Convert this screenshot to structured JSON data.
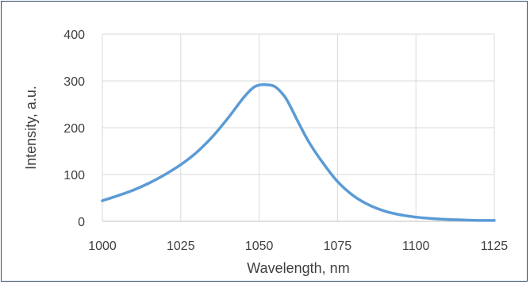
{
  "chart_data": {
    "type": "line",
    "title": "",
    "xlabel": "Wavelength, nm",
    "ylabel": "Intensity, a.u.",
    "xlim": [
      1000,
      1125
    ],
    "ylim": [
      0,
      400
    ],
    "x_ticks": [
      1000,
      1025,
      1050,
      1075,
      1100,
      1125
    ],
    "y_ticks": [
      0,
      100,
      200,
      300,
      400
    ],
    "grid": true,
    "legend": "none",
    "series": [
      {
        "color": "#5b9bd5",
        "x": [
          1000,
          1005,
          1010,
          1015,
          1020,
          1025,
          1030,
          1035,
          1040,
          1045,
          1048,
          1050,
          1052,
          1055,
          1058,
          1060,
          1063,
          1066,
          1070,
          1075,
          1080,
          1085,
          1090,
          1095,
          1100,
          1105,
          1110,
          1115,
          1120,
          1125
        ],
        "y": [
          44,
          55,
          67,
          82,
          100,
          121,
          147,
          180,
          220,
          264,
          285,
          291,
          292,
          288,
          268,
          245,
          205,
          168,
          128,
          85,
          55,
          35,
          22,
          14,
          9,
          6,
          4,
          3,
          2,
          2
        ]
      }
    ]
  }
}
